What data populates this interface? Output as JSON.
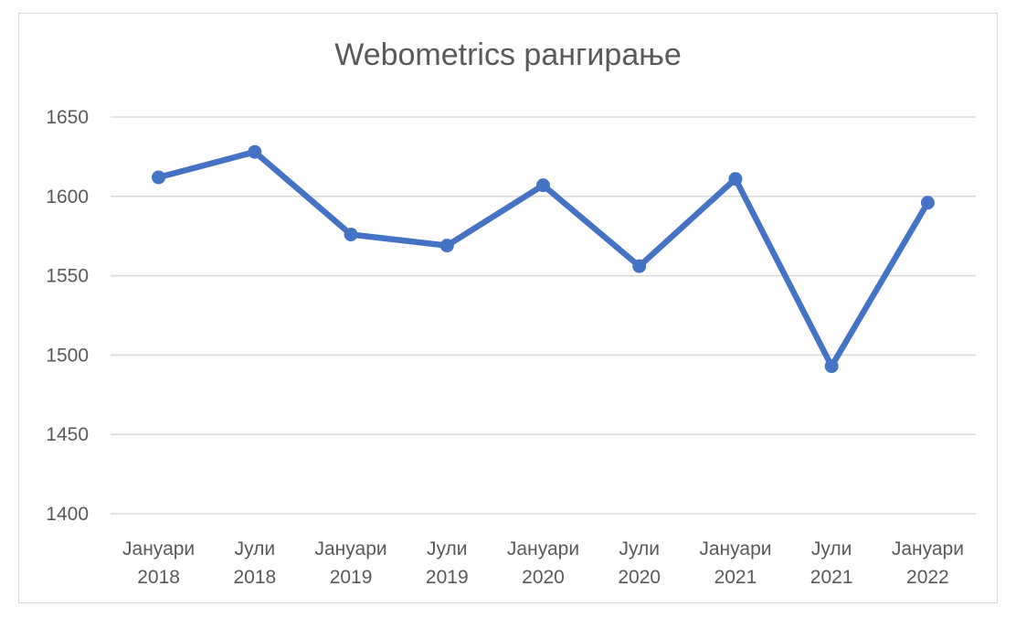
{
  "chart_data": {
    "type": "line",
    "title": "Webometrics рангирање",
    "xlabel": "",
    "ylabel": "",
    "categories": [
      [
        "Јануари",
        "2018"
      ],
      [
        "Јули",
        "2018"
      ],
      [
        "Јануари",
        "2019"
      ],
      [
        "Јули",
        "2019"
      ],
      [
        "Јануари",
        "2020"
      ],
      [
        "Јули",
        "2020"
      ],
      [
        "Јануари",
        "2021"
      ],
      [
        "Јули",
        "2021"
      ],
      [
        "Јануари",
        "2022"
      ]
    ],
    "series": [
      {
        "values": [
          1612,
          1628,
          1576,
          1569,
          1607,
          1556,
          1611,
          1493,
          1596
        ],
        "color": "#4472c4"
      }
    ],
    "ylim": [
      1400,
      1650
    ],
    "yticks": [
      "1400",
      "1450",
      "1500",
      "1550",
      "1600",
      "1650"
    ],
    "grid": true,
    "legend": "none",
    "colors": {
      "gridline": "#d9d9d9",
      "text": "#595959"
    }
  }
}
